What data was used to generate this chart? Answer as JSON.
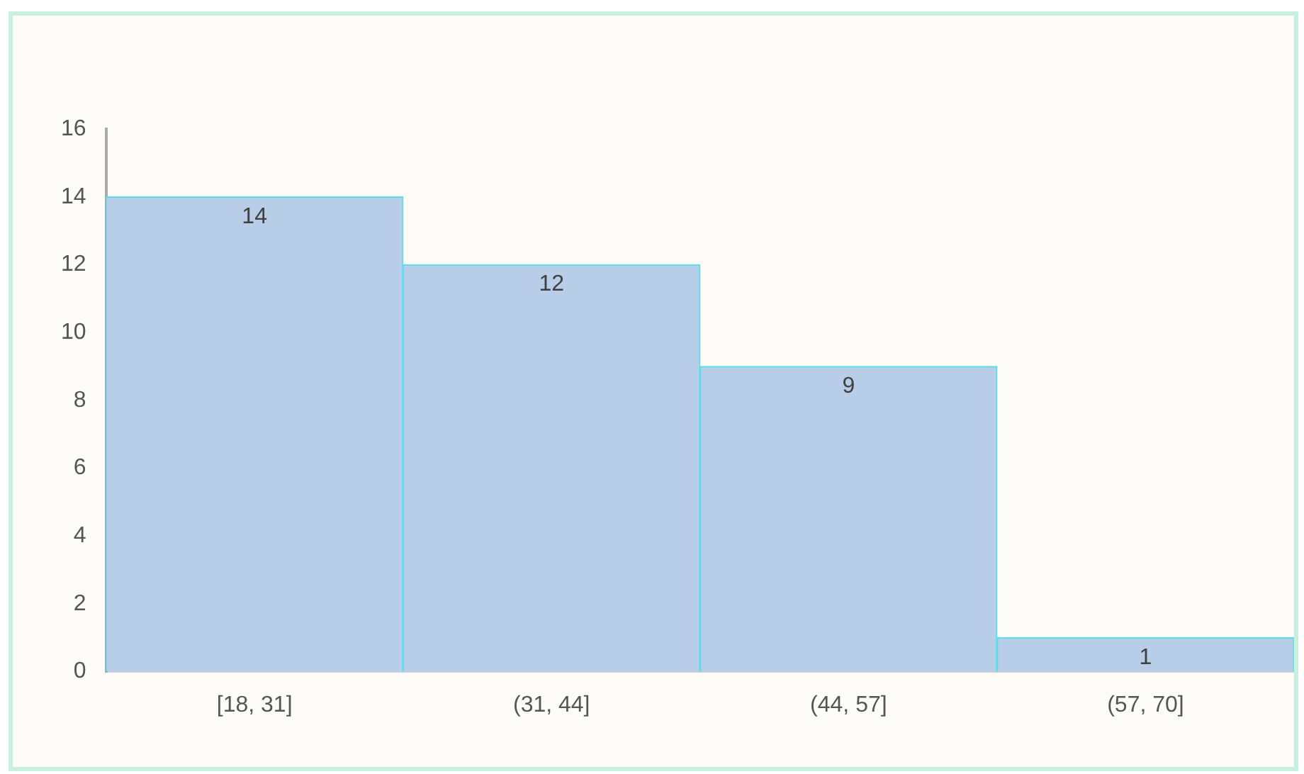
{
  "chart_data": {
    "type": "bar",
    "categories": [
      "[18, 31]",
      "(31, 44]",
      "(44, 57]",
      "(57, 70]"
    ],
    "values": [
      14,
      12,
      9,
      1
    ],
    "color": "#b7cde8",
    "ylim": [
      0,
      16
    ],
    "yticks": [
      0,
      2,
      4,
      6,
      8,
      10,
      12,
      14,
      16
    ],
    "grid": false,
    "data_labels": true,
    "legend": false
  }
}
